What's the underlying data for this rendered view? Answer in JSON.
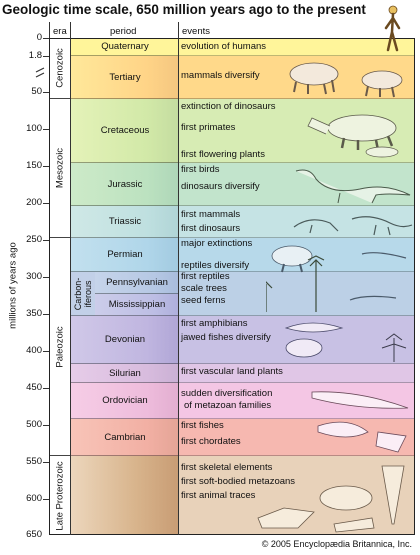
{
  "title": "Geologic time scale, 650 million years ago to the present",
  "y_axis_label": "millions of years ago",
  "headers": {
    "era": "era",
    "period": "period",
    "events": "events"
  },
  "ticks": [
    "0",
    "1.8",
    "50",
    "100",
    "150",
    "200",
    "250",
    "300",
    "350",
    "400",
    "450",
    "500",
    "550",
    "600",
    "650"
  ],
  "eras": {
    "cenozoic": "Cenozoic",
    "mesozoic": "Mesozoic",
    "paleozoic": "Paleozoic",
    "late_proterozoic": "Late Proterozoic"
  },
  "periods": {
    "quaternary": "Quaternary",
    "tertiary": "Tertiary",
    "cretaceous": "Cretaceous",
    "jurassic": "Jurassic",
    "triassic": "Triassic",
    "permian": "Permian",
    "carboniferous": "Carbon-\niferous",
    "pennsylvanian": "Pennsylvanian",
    "mississippian": "Mississippian",
    "devonian": "Devonian",
    "silurian": "Silurian",
    "ordovician": "Ordovician",
    "cambrian": "Cambrian"
  },
  "events": {
    "quaternary": [
      "evolution of humans"
    ],
    "tertiary": [
      "mammals diversify"
    ],
    "cretaceous": [
      "extinction of dinosaurs",
      "first primates",
      "first flowering plants"
    ],
    "jurassic": [
      "first birds",
      "dinosaurs diversify"
    ],
    "triassic": [
      "first mammals",
      "first dinosaurs"
    ],
    "permian": [
      "major extinctions",
      "reptiles diversify"
    ],
    "pennsylvanian": [
      "first reptiles",
      "scale trees",
      "seed ferns"
    ],
    "devonian": [
      "first amphibians",
      "jawed fishes diversify"
    ],
    "silurian": [
      "first vascular land plants"
    ],
    "ordovician": [
      "sudden diversification",
      "of metazoan families"
    ],
    "cambrian": [
      "first fishes",
      "first chordates"
    ],
    "proterozoic": [
      "first skeletal elements",
      "first soft-bodied metazoans",
      "first animal traces"
    ]
  },
  "copyright": "© 2005 Encyclopædia Britannica, Inc.",
  "colors": {
    "quaternary": "#fff59a",
    "tertiary": "#ffd98a",
    "cretaceous": "#d7ecb4",
    "jurassic": "#c2e4cc",
    "triassic": "#c5e3e4",
    "permian": "#b7d9ea",
    "pennsylvanian": "#bcd0e6",
    "mississippian": "#c4c8e6",
    "devonian": "#c8c1e4",
    "silurian": "#e0c6e6",
    "ordovician": "#f4c6e4",
    "cambrian": "#f6b8b0",
    "proterozoic": "#e8d2ba"
  }
}
